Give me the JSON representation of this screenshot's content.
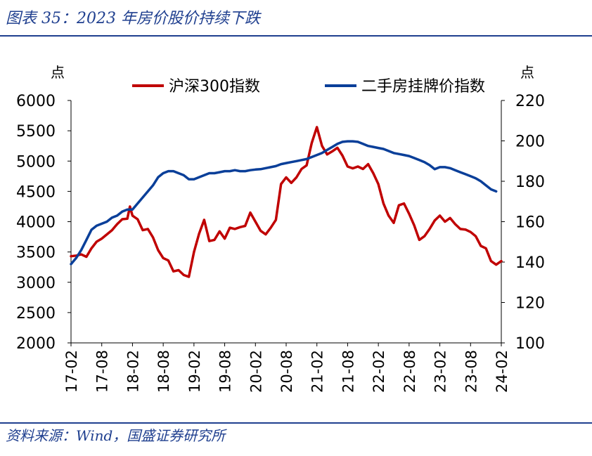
{
  "figure": {
    "title": "图表 35：2023 年房价股价持续下跌",
    "source": "资料来源：Wind，国盛证券研究所"
  },
  "chart_data": {
    "type": "line",
    "left_axis": {
      "unit": "点",
      "range": [
        2000,
        6000
      ],
      "ticks": [
        2000,
        2500,
        3000,
        3500,
        4000,
        4500,
        5000,
        5500,
        6000
      ]
    },
    "right_axis": {
      "unit": "点",
      "range": [
        100,
        220
      ],
      "ticks": [
        100,
        120,
        140,
        160,
        180,
        200,
        220
      ]
    },
    "x_ticks": [
      "17-02",
      "17-08",
      "18-02",
      "18-08",
      "19-02",
      "19-08",
      "20-02",
      "20-08",
      "21-02",
      "21-08",
      "22-02",
      "22-08",
      "23-02",
      "23-08",
      "24-02"
    ],
    "x_range": [
      0,
      84
    ],
    "legend_position": "top",
    "series": [
      {
        "name": "沪深300指数",
        "axis": "left",
        "color": "#c00000",
        "points": [
          [
            0,
            3430
          ],
          [
            1,
            3440
          ],
          [
            2,
            3460
          ],
          [
            3,
            3420
          ],
          [
            4,
            3560
          ],
          [
            5,
            3670
          ],
          [
            6,
            3720
          ],
          [
            7,
            3790
          ],
          [
            8,
            3860
          ],
          [
            9,
            3960
          ],
          [
            10,
            4040
          ],
          [
            11,
            4050
          ],
          [
            11.5,
            4250
          ],
          [
            12,
            4100
          ],
          [
            13,
            4040
          ],
          [
            14,
            3860
          ],
          [
            15,
            3880
          ],
          [
            16,
            3740
          ],
          [
            17,
            3530
          ],
          [
            18,
            3400
          ],
          [
            19,
            3360
          ],
          [
            20,
            3180
          ],
          [
            21,
            3200
          ],
          [
            22,
            3120
          ],
          [
            23,
            3090
          ],
          [
            24,
            3500
          ],
          [
            25,
            3800
          ],
          [
            26,
            4030
          ],
          [
            27,
            3680
          ],
          [
            28,
            3700
          ],
          [
            29,
            3840
          ],
          [
            30,
            3720
          ],
          [
            31,
            3900
          ],
          [
            32,
            3880
          ],
          [
            33,
            3910
          ],
          [
            34,
            3930
          ],
          [
            35,
            4150
          ],
          [
            36,
            4000
          ],
          [
            37,
            3850
          ],
          [
            38,
            3790
          ],
          [
            39,
            3900
          ],
          [
            40,
            4030
          ],
          [
            41,
            4620
          ],
          [
            42,
            4730
          ],
          [
            43,
            4640
          ],
          [
            44,
            4730
          ],
          [
            45,
            4870
          ],
          [
            46,
            4930
          ],
          [
            47,
            5300
          ],
          [
            48,
            5560
          ],
          [
            49,
            5250
          ],
          [
            50,
            5110
          ],
          [
            51,
            5160
          ],
          [
            52,
            5220
          ],
          [
            53,
            5090
          ],
          [
            54,
            4910
          ],
          [
            55,
            4880
          ],
          [
            56,
            4910
          ],
          [
            57,
            4870
          ],
          [
            58,
            4950
          ],
          [
            59,
            4800
          ],
          [
            60,
            4620
          ],
          [
            61,
            4300
          ],
          [
            62,
            4100
          ],
          [
            63,
            3980
          ],
          [
            64,
            4270
          ],
          [
            65,
            4300
          ],
          [
            66,
            4130
          ],
          [
            67,
            3940
          ],
          [
            68,
            3700
          ],
          [
            69,
            3760
          ],
          [
            70,
            3880
          ],
          [
            71,
            4020
          ],
          [
            72,
            4100
          ],
          [
            73,
            4000
          ],
          [
            74,
            4060
          ],
          [
            75,
            3960
          ],
          [
            76,
            3880
          ],
          [
            77,
            3870
          ],
          [
            78,
            3830
          ],
          [
            79,
            3760
          ],
          [
            80,
            3600
          ],
          [
            81,
            3560
          ],
          [
            82,
            3350
          ],
          [
            83,
            3290
          ],
          [
            84,
            3350
          ]
        ]
      },
      {
        "name": "二手房挂牌价指数",
        "axis": "right",
        "color": "#0a3f99",
        "points": [
          [
            0,
            139
          ],
          [
            1,
            142
          ],
          [
            2,
            146
          ],
          [
            3,
            151
          ],
          [
            4,
            156
          ],
          [
            5,
            158
          ],
          [
            6,
            159
          ],
          [
            7,
            160
          ],
          [
            8,
            162
          ],
          [
            9,
            163
          ],
          [
            10,
            165
          ],
          [
            11,
            166
          ],
          [
            12,
            166
          ],
          [
            13,
            169
          ],
          [
            14,
            172
          ],
          [
            15,
            175
          ],
          [
            16,
            178
          ],
          [
            17,
            182
          ],
          [
            18,
            184
          ],
          [
            19,
            185
          ],
          [
            20,
            185
          ],
          [
            21,
            184
          ],
          [
            22,
            183
          ],
          [
            23,
            181
          ],
          [
            24,
            181
          ],
          [
            25,
            182
          ],
          [
            26,
            183
          ],
          [
            27,
            184
          ],
          [
            28,
            184
          ],
          [
            29,
            184.5
          ],
          [
            30,
            185
          ],
          [
            31,
            185
          ],
          [
            32,
            185.5
          ],
          [
            33,
            185
          ],
          [
            34,
            185
          ],
          [
            35,
            185.5
          ],
          [
            36,
            185.8
          ],
          [
            37,
            186
          ],
          [
            38,
            186.5
          ],
          [
            39,
            187
          ],
          [
            40,
            187.5
          ],
          [
            41,
            188.5
          ],
          [
            42,
            189
          ],
          [
            43,
            189.5
          ],
          [
            44,
            190
          ],
          [
            45,
            190.5
          ],
          [
            46,
            191
          ],
          [
            47,
            192
          ],
          [
            48,
            193
          ],
          [
            49,
            194
          ],
          [
            50,
            195.5
          ],
          [
            51,
            197
          ],
          [
            52,
            198.5
          ],
          [
            53,
            199.5
          ],
          [
            54,
            199.8
          ],
          [
            55,
            199.8
          ],
          [
            56,
            199.5
          ],
          [
            57,
            198.5
          ],
          [
            58,
            197.5
          ],
          [
            59,
            197
          ],
          [
            60,
            196.5
          ],
          [
            61,
            196
          ],
          [
            62,
            195
          ],
          [
            63,
            194
          ],
          [
            64,
            193.5
          ],
          [
            65,
            193
          ],
          [
            66,
            192.5
          ],
          [
            67,
            191.5
          ],
          [
            68,
            190.5
          ],
          [
            69,
            189.5
          ],
          [
            70,
            188
          ],
          [
            71,
            186
          ],
          [
            72,
            187
          ],
          [
            73,
            187
          ],
          [
            74,
            186.5
          ],
          [
            75,
            185.5
          ],
          [
            76,
            184.5
          ],
          [
            77,
            183.5
          ],
          [
            78,
            182.5
          ],
          [
            79,
            181.5
          ],
          [
            80,
            180
          ],
          [
            81,
            178
          ],
          [
            82,
            176
          ],
          [
            83,
            175
          ]
        ]
      }
    ]
  }
}
